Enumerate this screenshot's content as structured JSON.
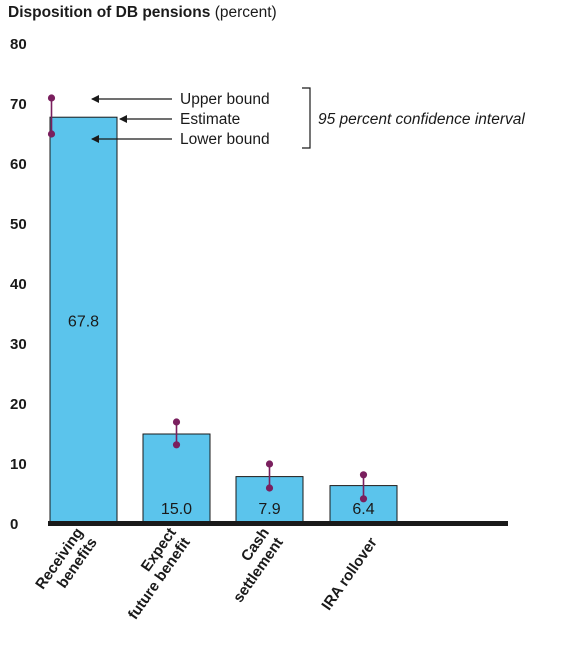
{
  "chart_data": {
    "type": "bar",
    "title": "Disposition of DB pensions",
    "title_suffix": "(percent)",
    "categories": [
      [
        "Receiving",
        "benefits"
      ],
      [
        "Expect",
        "future benefit"
      ],
      [
        "Cash",
        "settlement"
      ],
      [
        "IRA rollover"
      ]
    ],
    "values": [
      67.8,
      15.0,
      7.9,
      6.4
    ],
    "value_labels": [
      "67.8",
      "15.0",
      "7.9",
      "6.4"
    ],
    "upper_bounds": [
      71.0,
      17.0,
      10.0,
      8.2
    ],
    "lower_bounds": [
      65.0,
      13.2,
      6.0,
      4.2
    ],
    "ylim": [
      0,
      80
    ],
    "yticks": [
      "0",
      "10",
      "20",
      "30",
      "40",
      "50",
      "60",
      "70",
      "80"
    ],
    "legend": {
      "upper": "Upper bound",
      "estimate": "Estimate",
      "lower": "Lower bound",
      "interval": "95 percent confidence interval"
    },
    "colors": {
      "bar": "#5bc4ec",
      "marker": "#7a1f5e",
      "axis": "#1a1a1a"
    }
  }
}
